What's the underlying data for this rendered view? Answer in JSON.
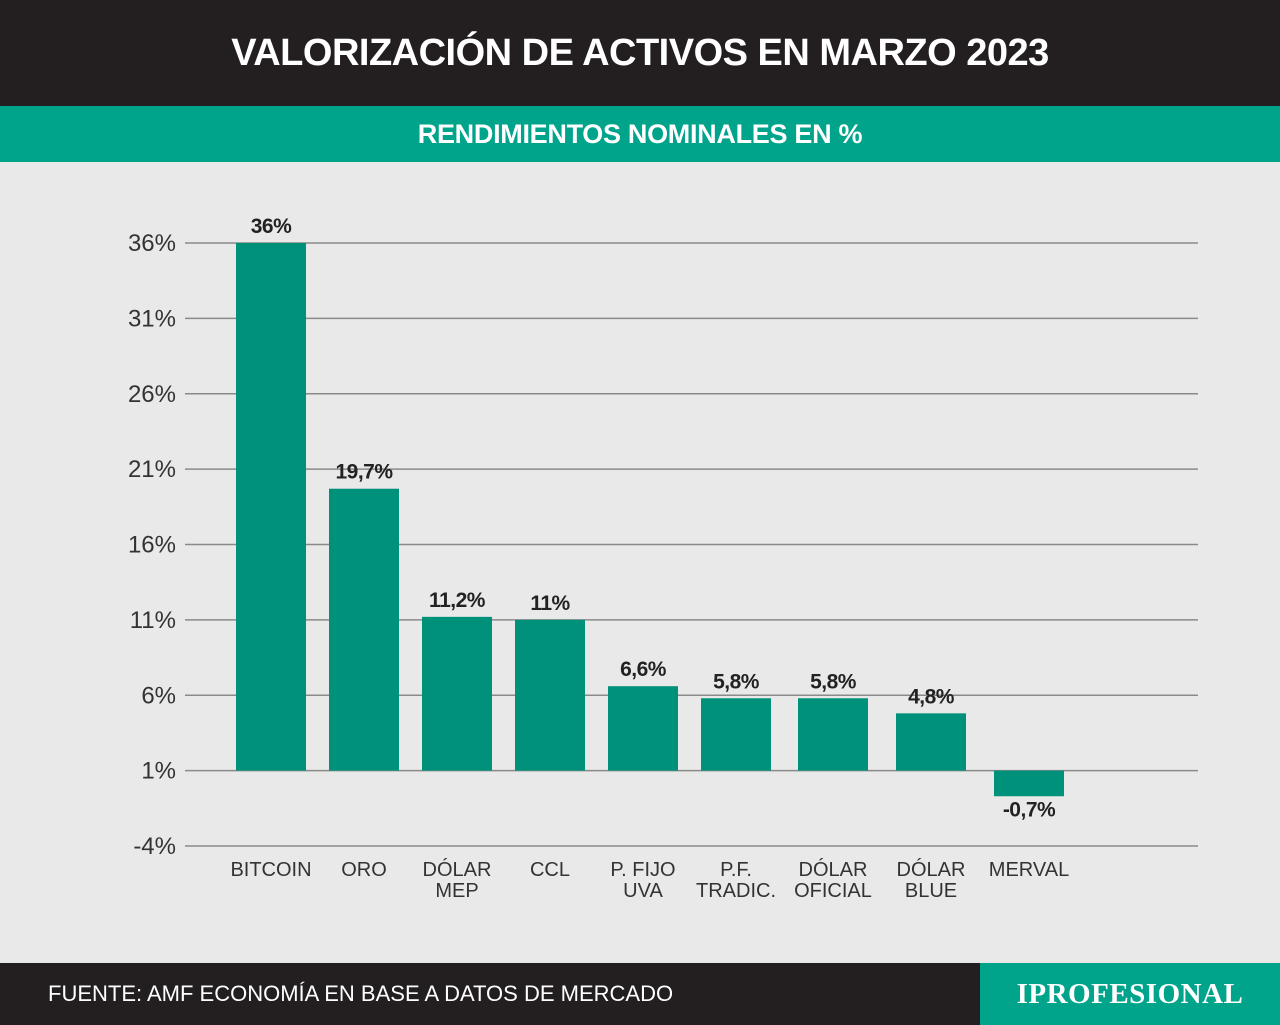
{
  "header": {
    "title": "VALORIZACIÓN DE ACTIVOS EN MARZO 2023",
    "subtitle": "RENDIMIENTOS NOMINALES EN %"
  },
  "footer": {
    "source": "FUENTE: AMF ECONOMÍA EN BASE A DATOS DE MERCADO",
    "brand": "IPROFESIONAL"
  },
  "colors": {
    "bar": "#00917a",
    "accent": "#00a48b",
    "dark": "#231f20",
    "grid": "#8a8a8a"
  },
  "chart_data": {
    "type": "bar",
    "categories": [
      [
        "BITCOIN"
      ],
      [
        "ORO"
      ],
      [
        "DÓLAR",
        "MEP"
      ],
      [
        "CCL"
      ],
      [
        "P. FIJO",
        "UVA"
      ],
      [
        "P.F.",
        "TRADIC."
      ],
      [
        "DÓLAR",
        "OFICIAL"
      ],
      [
        "DÓLAR",
        "BLUE"
      ],
      [
        "MERVAL"
      ]
    ],
    "values": [
      36,
      19.7,
      11.2,
      11,
      6.6,
      5.8,
      5.8,
      4.8,
      -0.7
    ],
    "value_labels": [
      "36%",
      "19,7%",
      "11,2%",
      "11%",
      "6,6%",
      "5,8%",
      "5,8%",
      "4,8%",
      "-0,7%"
    ],
    "yticks": [
      36,
      31,
      26,
      21,
      16,
      11,
      6,
      1,
      -4
    ],
    "ytick_labels": [
      "36%",
      "31%",
      "26%",
      "21%",
      "16%",
      "11%",
      "6%",
      "1%",
      "-4%"
    ],
    "ylim": [
      -4,
      36
    ],
    "grid": true,
    "title": "VALORIZACIÓN DE ACTIVOS EN MARZO 2023",
    "subtitle": "RENDIMIENTOS NOMINALES EN %",
    "xlabel": "",
    "ylabel": ""
  }
}
